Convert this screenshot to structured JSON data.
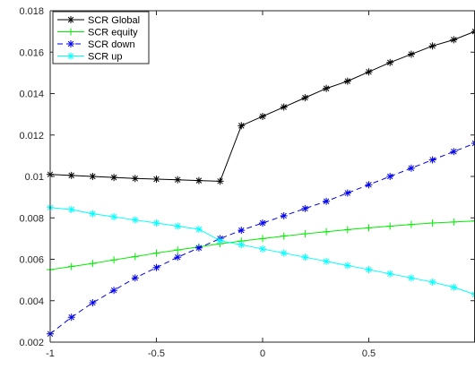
{
  "chart_data": {
    "type": "line",
    "title": "",
    "xlabel": "",
    "ylabel": "",
    "xlim": [
      -1,
      1
    ],
    "ylim": [
      0.002,
      0.018
    ],
    "xticks": [
      -1,
      -0.5,
      0,
      0.5,
      1
    ],
    "xtick_labels": [
      "-1",
      "-0.5",
      "0",
      "0.5",
      ""
    ],
    "yticks": [
      0.002,
      0.004,
      0.006,
      0.008,
      0.01,
      0.012,
      0.014,
      0.016,
      0.018
    ],
    "ytick_labels": [
      "0.002",
      "0.004",
      "0.006",
      "0.008",
      "0.01",
      "0.012",
      "0.014",
      "0.016",
      "0.018"
    ],
    "grid": false,
    "legend_position": "top-left",
    "x": [
      -1,
      -0.9,
      -0.8,
      -0.7,
      -0.6,
      -0.5,
      -0.4,
      -0.3,
      -0.2,
      -0.1,
      0,
      0.1,
      0.2,
      0.3,
      0.4,
      0.5,
      0.6,
      0.7,
      0.8,
      0.9,
      1
    ],
    "series": [
      {
        "name": "SCR Global",
        "color": "#000000",
        "dash": "solid",
        "marker": "star",
        "values": [
          0.0101,
          0.01005,
          0.01,
          0.00995,
          0.0099,
          0.00987,
          0.00984,
          0.0098,
          0.00977,
          0.01245,
          0.0129,
          0.01335,
          0.0138,
          0.01425,
          0.0146,
          0.01505,
          0.0155,
          0.0159,
          0.0163,
          0.0166,
          0.017
        ]
      },
      {
        "name": "SCR equity",
        "color": "#00ee00",
        "dash": "solid",
        "marker": "plus",
        "values": [
          0.0055,
          0.00565,
          0.0058,
          0.00597,
          0.00613,
          0.0063,
          0.00645,
          0.0066,
          0.00675,
          0.00688,
          0.007,
          0.00712,
          0.00723,
          0.00733,
          0.00743,
          0.00752,
          0.0076,
          0.00768,
          0.00775,
          0.0078,
          0.00785
        ]
      },
      {
        "name": "SCR down",
        "color": "#0000ee",
        "dash": "dashed",
        "marker": "star",
        "values": [
          0.0024,
          0.0032,
          0.0039,
          0.0045,
          0.0051,
          0.0056,
          0.0061,
          0.00655,
          0.007,
          0.0074,
          0.00775,
          0.0081,
          0.00845,
          0.0088,
          0.0092,
          0.0096,
          0.01,
          0.0104,
          0.0108,
          0.0112,
          0.0116
        ]
      },
      {
        "name": "SCR up",
        "color": "#00ffff",
        "dash": "solid",
        "marker": "star",
        "values": [
          0.0085,
          0.0084,
          0.0082,
          0.00805,
          0.0079,
          0.00775,
          0.0076,
          0.00745,
          0.0069,
          0.0067,
          0.0065,
          0.0063,
          0.0061,
          0.0059,
          0.0057,
          0.0055,
          0.0053,
          0.0051,
          0.0049,
          0.00465,
          0.0043
        ]
      }
    ]
  }
}
